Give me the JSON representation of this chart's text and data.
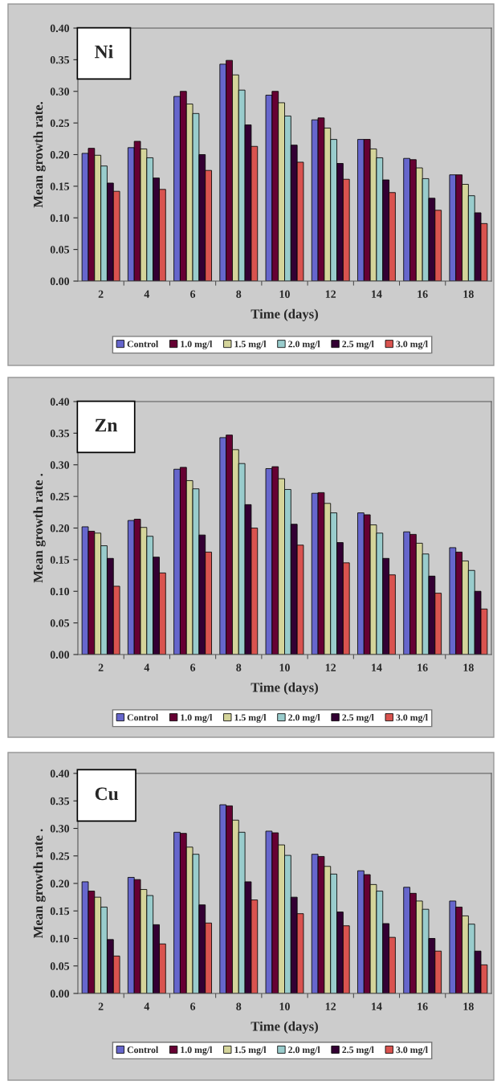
{
  "chart_data": [
    {
      "type": "bar",
      "title": "Ni",
      "xlabel": "Time (days)",
      "ylabel": "Mean growth rate.",
      "categories": [
        "2",
        "4",
        "6",
        "8",
        "10",
        "12",
        "14",
        "16",
        "18"
      ],
      "ylim": [
        0,
        0.4
      ],
      "yticks": [
        {
          "value": 0,
          "label": "0.00"
        },
        {
          "value": 0.05,
          "label": "0.05"
        },
        {
          "value": 0.1,
          "label": "0.10"
        },
        {
          "value": 0.15,
          "label": "0.15"
        },
        {
          "value": 0.2,
          "label": "0.20"
        },
        {
          "value": 0.25,
          "label": "0.25"
        },
        {
          "value": 0.3,
          "label": "0.30"
        },
        {
          "value": 0.35,
          "label": "0.35"
        },
        {
          "value": 0.4,
          "label": "0.40"
        }
      ],
      "legend": "bottom",
      "series": [
        {
          "name": "Control",
          "color": "#6666cc",
          "values": [
            0.202,
            0.211,
            0.292,
            0.343,
            0.294,
            0.255,
            0.224,
            0.194,
            0.168
          ]
        },
        {
          "name": "1.0 mg/l",
          "color": "#660033",
          "values": [
            0.21,
            0.221,
            0.3,
            0.349,
            0.3,
            0.258,
            0.224,
            0.192,
            0.168
          ]
        },
        {
          "name": "1.5 mg/l",
          "color": "#d4d49a",
          "values": [
            0.199,
            0.209,
            0.28,
            0.326,
            0.282,
            0.242,
            0.209,
            0.179,
            0.153
          ]
        },
        {
          "name": "2.0 mg/l",
          "color": "#99cccc",
          "values": [
            0.182,
            0.195,
            0.265,
            0.302,
            0.261,
            0.224,
            0.195,
            0.162,
            0.135
          ]
        },
        {
          "name": "2.5 mg/l",
          "color": "#330033",
          "values": [
            0.155,
            0.163,
            0.2,
            0.247,
            0.215,
            0.186,
            0.16,
            0.131,
            0.108
          ]
        },
        {
          "name": "3.0 mg/l",
          "color": "#d9534f",
          "values": [
            0.142,
            0.145,
            0.175,
            0.213,
            0.188,
            0.161,
            0.14,
            0.112,
            0.091
          ]
        }
      ]
    },
    {
      "type": "bar",
      "title": "Zn",
      "xlabel": "Time (days)",
      "ylabel": "Mean growth rate .",
      "categories": [
        "2",
        "4",
        "6",
        "8",
        "10",
        "12",
        "14",
        "16",
        "18"
      ],
      "ylim": [
        0,
        0.4
      ],
      "yticks": [
        {
          "value": 0,
          "label": "0.00"
        },
        {
          "value": 0.05,
          "label": "0.05"
        },
        {
          "value": 0.1,
          "label": "0.10"
        },
        {
          "value": 0.15,
          "label": "0.15"
        },
        {
          "value": 0.2,
          "label": "0.20"
        },
        {
          "value": 0.25,
          "label": "0.25"
        },
        {
          "value": 0.3,
          "label": "0.30"
        },
        {
          "value": 0.35,
          "label": "0.35"
        },
        {
          "value": 0.4,
          "label": "0.40"
        }
      ],
      "legend": "bottom",
      "series": [
        {
          "name": "Control",
          "color": "#6666cc",
          "values": [
            0.202,
            0.212,
            0.293,
            0.343,
            0.294,
            0.255,
            0.224,
            0.194,
            0.169
          ]
        },
        {
          "name": "1.0 mg/l",
          "color": "#660033",
          "values": [
            0.195,
            0.214,
            0.296,
            0.347,
            0.297,
            0.256,
            0.221,
            0.19,
            0.162
          ]
        },
        {
          "name": "1.5 mg/l",
          "color": "#d4d49a",
          "values": [
            0.192,
            0.201,
            0.275,
            0.324,
            0.278,
            0.239,
            0.205,
            0.176,
            0.148
          ]
        },
        {
          "name": "2.0 mg/l",
          "color": "#99cccc",
          "values": [
            0.172,
            0.187,
            0.262,
            0.302,
            0.261,
            0.224,
            0.192,
            0.159,
            0.133
          ]
        },
        {
          "name": "2.5 mg/l",
          "color": "#330033",
          "values": [
            0.152,
            0.154,
            0.189,
            0.237,
            0.206,
            0.177,
            0.152,
            0.124,
            0.1
          ]
        },
        {
          "name": "3.0 mg/l",
          "color": "#d9534f",
          "values": [
            0.108,
            0.129,
            0.162,
            0.2,
            0.173,
            0.145,
            0.126,
            0.097,
            0.072
          ]
        }
      ]
    },
    {
      "type": "bar",
      "title": "Cu",
      "xlabel": "Time (days)",
      "ylabel": "Mean growth rate .",
      "categories": [
        "2",
        "4",
        "6",
        "8",
        "10",
        "12",
        "14",
        "16",
        "18"
      ],
      "ylim": [
        0,
        0.4
      ],
      "yticks": [
        {
          "value": 0,
          "label": "0.00"
        },
        {
          "value": 0.05,
          "label": "0.05"
        },
        {
          "value": 0.1,
          "label": "0.10"
        },
        {
          "value": 0.15,
          "label": "0.15"
        },
        {
          "value": 0.2,
          "label": "0.20"
        },
        {
          "value": 0.25,
          "label": "0.25"
        },
        {
          "value": 0.3,
          "label": "0.30"
        },
        {
          "value": 0.35,
          "label": "0.35"
        },
        {
          "value": 0.4,
          "label": "0.40"
        }
      ],
      "legend": "bottom",
      "series": [
        {
          "name": "Control",
          "color": "#6666cc",
          "values": [
            0.203,
            0.211,
            0.293,
            0.343,
            0.295,
            0.253,
            0.223,
            0.193,
            0.168
          ]
        },
        {
          "name": "1.0 mg/l",
          "color": "#660033",
          "values": [
            0.186,
            0.207,
            0.291,
            0.341,
            0.292,
            0.249,
            0.216,
            0.182,
            0.157
          ]
        },
        {
          "name": "1.5 mg/l",
          "color": "#d4d49a",
          "values": [
            0.175,
            0.189,
            0.266,
            0.315,
            0.27,
            0.231,
            0.198,
            0.168,
            0.141
          ]
        },
        {
          "name": "2.0 mg/l",
          "color": "#99cccc",
          "values": [
            0.157,
            0.178,
            0.253,
            0.293,
            0.251,
            0.217,
            0.186,
            0.153,
            0.126
          ]
        },
        {
          "name": "2.5 mg/l",
          "color": "#330033",
          "values": [
            0.098,
            0.125,
            0.161,
            0.203,
            0.175,
            0.148,
            0.127,
            0.1,
            0.077
          ]
        },
        {
          "name": "3.0 mg/l",
          "color": "#d9534f",
          "values": [
            0.068,
            0.09,
            0.128,
            0.17,
            0.145,
            0.123,
            0.102,
            0.077,
            0.052
          ]
        }
      ]
    }
  ]
}
